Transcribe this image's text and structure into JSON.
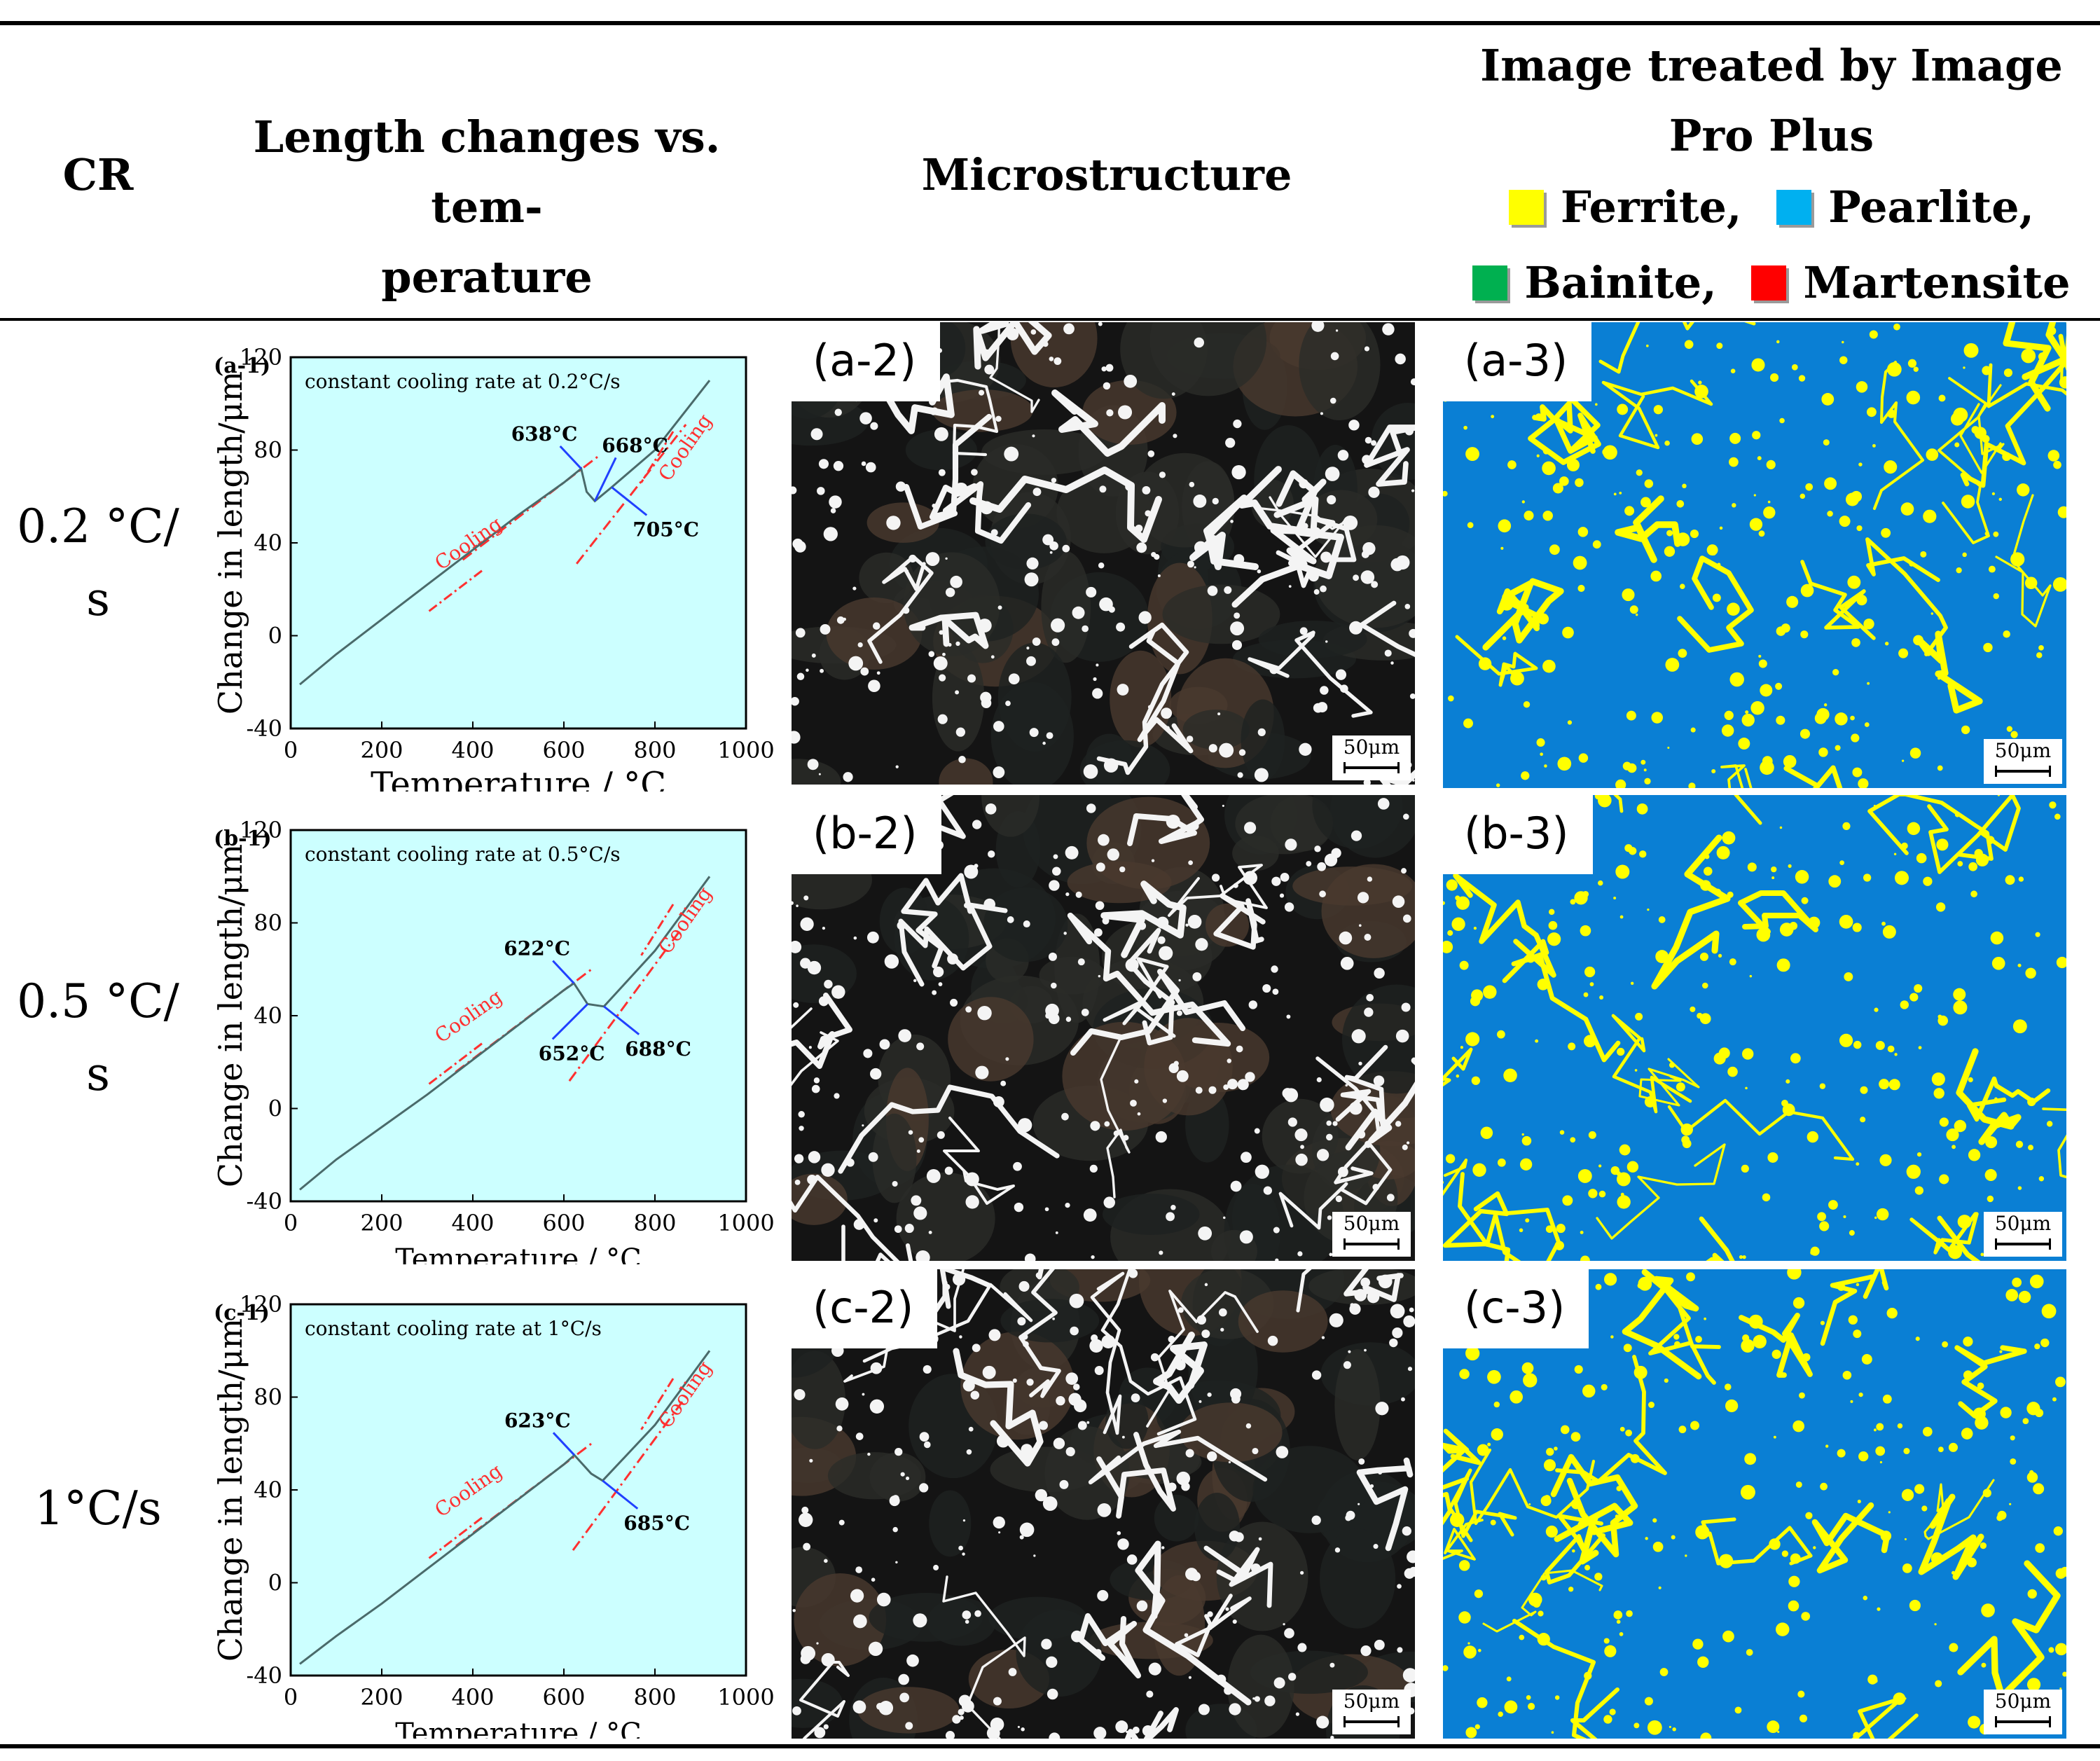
{
  "header": {
    "cr": "CR",
    "length_changes": [
      "Length changes vs. tem-",
      "perature"
    ],
    "microstructure": "Microstructure",
    "treated": [
      "Image treated by Image",
      "Pro Plus"
    ],
    "legend": [
      {
        "label": "Ferrite,",
        "color": "#ffff00"
      },
      {
        "label": "Pearlite,",
        "color": "#00b0f0"
      },
      {
        "label": "Bainite,",
        "color": "#00b050"
      },
      {
        "label": "Martensite",
        "color": "#ff0000"
      }
    ]
  },
  "colors": {
    "chart_bg": "#ccffff",
    "curve": "#4a6a6a",
    "tangent": "#ff3030",
    "arrow": "#2040ff",
    "phase_matrix": "#0a7fd4",
    "phase_ferrite": "#ffff00"
  },
  "rows": [
    {
      "cr": [
        "0.2 °C/",
        "s"
      ],
      "chart_data": {
        "type": "line",
        "panel_label": "(a-1)",
        "annotation": "constant cooling rate at 0.2°C/s",
        "xlabel": "Temperature / °C",
        "ylabel": "Change in length/μm",
        "xlim": [
          0,
          1000
        ],
        "ylim": [
          -40,
          120
        ],
        "xticks": [
          0,
          200,
          400,
          600,
          800,
          1000
        ],
        "yticks": [
          -40,
          0,
          40,
          80,
          120
        ],
        "series": [
          {
            "x": [
              20,
              100,
              200,
              300,
              400,
              500,
              600,
              638,
              650,
              668,
              705,
              800,
              920
            ],
            "y": [
              -21,
              -8,
              7,
              22,
              37,
              52,
              66,
              72,
              62,
              58,
              64,
              80,
              110
            ]
          }
        ],
        "temp_labels": [
          {
            "text": "638°C",
            "x": 638,
            "y": 72
          },
          {
            "text": "668°C",
            "x": 668,
            "y": 58
          },
          {
            "text": "705°C",
            "x": 705,
            "y": 64
          }
        ],
        "cooling_labels": [
          "Cooling",
          "Cooling"
        ]
      },
      "micro_label": "(a-2)",
      "treated_label": "(a-3)",
      "scale": "50μm"
    },
    {
      "cr": [
        "0.5 °C/",
        "s"
      ],
      "chart_data": {
        "type": "line",
        "panel_label": "(b-1)",
        "annotation": "constant cooling rate at 0.5°C/s",
        "xlabel": "Temperature / °C",
        "ylabel": "Change in length/μm",
        "xlim": [
          0,
          1000
        ],
        "ylim": [
          -40,
          120
        ],
        "xticks": [
          0,
          200,
          400,
          600,
          800,
          1000
        ],
        "yticks": [
          -40,
          0,
          40,
          80,
          120
        ],
        "series": [
          {
            "x": [
              20,
              100,
              200,
              300,
              400,
              500,
              600,
              622,
              652,
              688,
              800,
              920
            ],
            "y": [
              -35,
              -22,
              -8,
              6,
              21,
              36,
              51,
              54,
              45,
              44,
              68,
              100
            ]
          }
        ],
        "temp_labels": [
          {
            "text": "622°C",
            "x": 622,
            "y": 54
          },
          {
            "text": "652°C",
            "x": 652,
            "y": 45
          },
          {
            "text": "688°C",
            "x": 688,
            "y": 44
          }
        ],
        "cooling_labels": [
          "Cooling",
          "Cooling"
        ]
      },
      "micro_label": "(b-2)",
      "treated_label": "(b-3)",
      "scale": "50μm"
    },
    {
      "cr": [
        "1°C/s"
      ],
      "chart_data": {
        "type": "line",
        "panel_label": "(c-1)",
        "annotation": "constant cooling rate at 1°C/s",
        "xlabel": "Temperature / °C",
        "ylabel": "Change in length/μm",
        "xlim": [
          0,
          1000
        ],
        "ylim": [
          -40,
          120
        ],
        "xticks": [
          0,
          200,
          400,
          600,
          800,
          1000
        ],
        "yticks": [
          -40,
          0,
          40,
          80,
          120
        ],
        "series": [
          {
            "x": [
              20,
              100,
              200,
              300,
              400,
              500,
              600,
              623,
              660,
              685,
              800,
              920
            ],
            "y": [
              -35,
              -23,
              -9,
              6,
              21,
              36,
              51,
              55,
              47,
              44,
              68,
              100
            ]
          }
        ],
        "temp_labels": [
          {
            "text": "623°C",
            "x": 623,
            "y": 55
          },
          {
            "text": "685°C",
            "x": 685,
            "y": 44
          }
        ],
        "cooling_labels": [
          "Cooling",
          "Cooling"
        ]
      },
      "micro_label": "(c-2)",
      "treated_label": "(c-3)",
      "scale": "50μm"
    }
  ]
}
